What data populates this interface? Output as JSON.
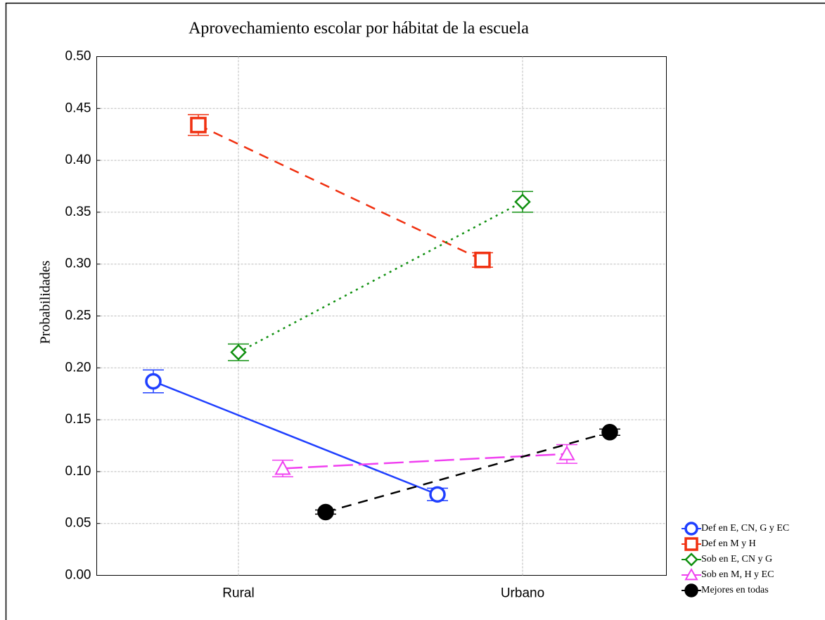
{
  "chart_data": {
    "type": "line",
    "title": "Aprovechamiento escolar por hábitat de la escuela",
    "y_label": "Probabilidades",
    "categories": [
      "Rural",
      "Urbano"
    ],
    "ylim": [
      0,
      0.5
    ],
    "yticks": [
      {
        "value": 0,
        "label": "0.00"
      },
      {
        "value": 0.05,
        "label": "0.05"
      },
      {
        "value": 0.1,
        "label": "0.10"
      },
      {
        "value": 0.15,
        "label": "0.15"
      },
      {
        "value": 0.2,
        "label": "0.20"
      },
      {
        "value": 0.25,
        "label": "0.25"
      },
      {
        "value": 0.3,
        "label": "0.30"
      },
      {
        "value": 0.35,
        "label": "0.35"
      },
      {
        "value": 0.4,
        "label": "0.40"
      },
      {
        "value": 0.45,
        "label": "0.45"
      },
      {
        "value": 0.5,
        "label": "0.50"
      }
    ],
    "grid": true,
    "legend": "bottom-right",
    "series": [
      {
        "name": "Def en E, CN, G y EC",
        "color": "#1f3fff",
        "marker": "circle",
        "dash": "solid",
        "values": [
          0.187,
          0.078
        ],
        "errors": [
          0.011,
          0.006
        ]
      },
      {
        "name": "Def en M y H",
        "color": "#f03010",
        "marker": "square",
        "dash": "dashed",
        "values": [
          0.434,
          0.304
        ],
        "errors": [
          0.01,
          0.007
        ]
      },
      {
        "name": "Sob en E, CN y G",
        "color": "#109010",
        "marker": "diamond",
        "dash": "dotted",
        "values": [
          0.215,
          0.36
        ],
        "errors": [
          0.008,
          0.01
        ]
      },
      {
        "name": "Sob en M, H y EC",
        "color": "#f040f0",
        "marker": "triangle",
        "dash": "longdash",
        "values": [
          0.103,
          0.117
        ],
        "errors": [
          0.008,
          0.009
        ]
      },
      {
        "name": "Mejores en todas",
        "color": "#000000",
        "marker": "filled-circle",
        "dash": "dashed",
        "values": [
          0.061,
          0.138
        ],
        "errors": [
          0.002,
          0.003
        ]
      }
    ]
  }
}
